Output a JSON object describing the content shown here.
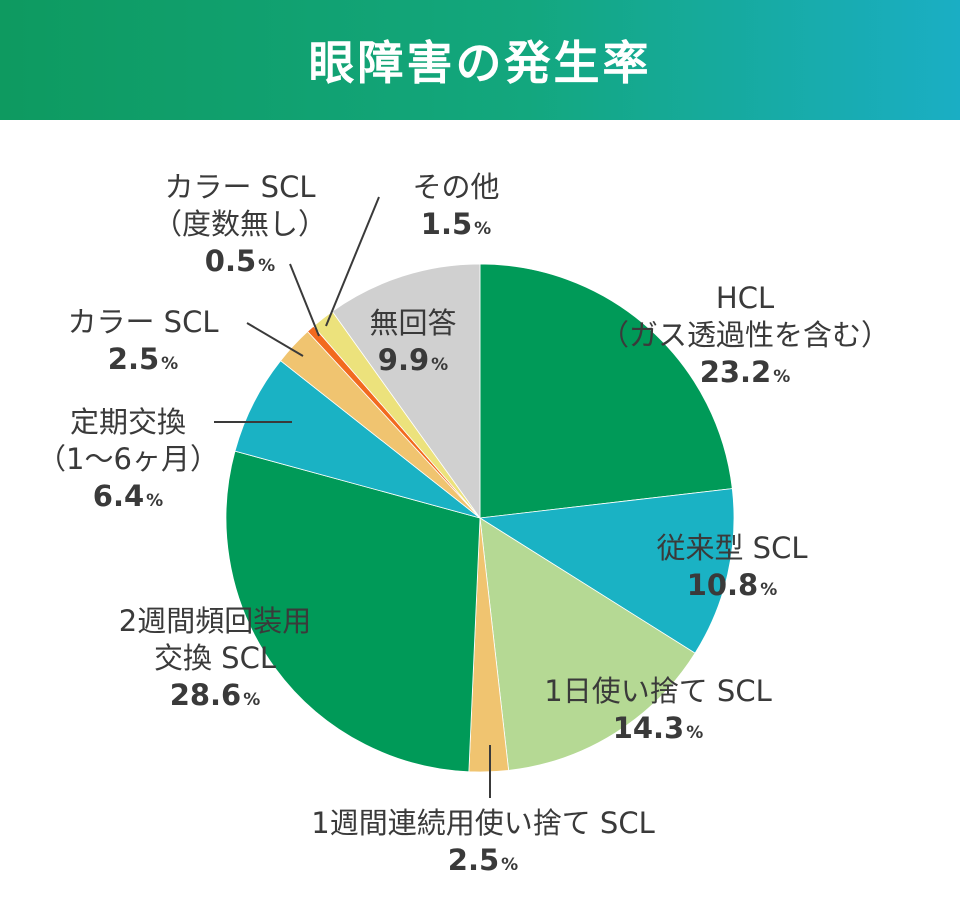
{
  "header": {
    "title": "眼障害の発生率"
  },
  "chart_data": {
    "type": "pie",
    "start": "12 o'clock, clockwise",
    "unit": "%",
    "slices": [
      {
        "key": "hcl",
        "label_lines": [
          "HCL",
          "（ガス透過性を含む）"
        ],
        "value": 23.2,
        "value_text": "23.2",
        "color": "#009a58"
      },
      {
        "key": "conv_scl",
        "label_lines": [
          "従来型 SCL"
        ],
        "value": 10.8,
        "value_text": "10.8",
        "color": "#1ab2c4"
      },
      {
        "key": "daily_scl",
        "label_lines": [
          "1日使い捨て SCL"
        ],
        "value": 14.3,
        "value_text": "14.3",
        "color": "#b5d994"
      },
      {
        "key": "weekly_scl",
        "label_lines": [
          "1週間連続用使い捨て SCL"
        ],
        "value": 2.5,
        "value_text": "2.5",
        "color": "#f0c470"
      },
      {
        "key": "two_week_scl",
        "label_lines": [
          "2週間頻回装用",
          "交換 SCL"
        ],
        "value": 28.6,
        "value_text": "28.6",
        "color": "#009a58"
      },
      {
        "key": "periodic",
        "label_lines": [
          "定期交換",
          "（1〜6ヶ月）"
        ],
        "value": 6.4,
        "value_text": "6.4",
        "color": "#1ab2c4"
      },
      {
        "key": "color_scl",
        "label_lines": [
          "カラー SCL"
        ],
        "value": 2.5,
        "value_text": "2.5",
        "color": "#f0c470"
      },
      {
        "key": "color_scl_nodeg",
        "label_lines": [
          "カラー SCL",
          "（度数無し）"
        ],
        "value": 0.5,
        "value_text": "0.5",
        "color": "#f26a1f"
      },
      {
        "key": "other",
        "label_lines": [
          "その他"
        ],
        "value": 1.5,
        "value_text": "1.5",
        "color": "#ece27c"
      },
      {
        "key": "no_answer",
        "label_lines": [
          "無回答"
        ],
        "value": 9.9,
        "value_text": "9.9",
        "color": "#d0d0d0"
      }
    ]
  }
}
